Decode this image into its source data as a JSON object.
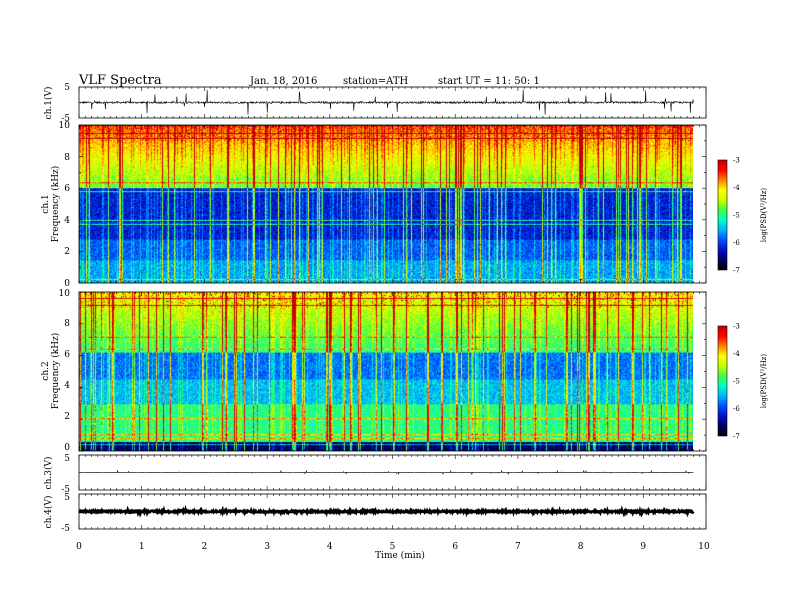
{
  "header": {
    "title": "VLF  Spectra",
    "date": "Jan. 18, 2016",
    "station": "station=ATH",
    "start": "start  UT  =   11: 50: 1"
  },
  "chart_data": [
    {
      "type": "line",
      "name": "ch1",
      "ylabel": "ch.1(V)",
      "ylim": [
        -5,
        5
      ],
      "yticks": [
        "5",
        "-5"
      ],
      "baseline": 0,
      "noise": 0.3,
      "spike_amp": 1.4
    },
    {
      "type": "heatmap",
      "name": "ch1-spectrum",
      "ylabel_channel": "ch.1",
      "ylabel": "Frequency  (kHz)",
      "ylim": [
        0,
        10
      ],
      "yticks": [
        "0",
        "2",
        "4",
        "6",
        "8",
        "10"
      ],
      "colorbar": {
        "label": "log(PSD(V²/Hz)",
        "range": [
          -7,
          -3
        ],
        "ticks": [
          "-3",
          "-4",
          "-5",
          "-6",
          "-7"
        ]
      }
    },
    {
      "type": "heatmap",
      "name": "ch2-spectrum",
      "ylabel_channel": "ch.2",
      "ylabel": "Frequency  (kHz)",
      "ylim": [
        0,
        10
      ],
      "yticks": [
        "0",
        "2",
        "4",
        "6",
        "8",
        "10"
      ],
      "colorbar": {
        "label": "log(PSD(V²/Hz)",
        "range": [
          -7,
          -3
        ],
        "ticks": [
          "-3",
          "-4",
          "-5",
          "-6",
          "-7"
        ]
      }
    },
    {
      "type": "line",
      "name": "ch3",
      "ylabel": "ch.3(V)",
      "ylim": [
        -5,
        5
      ],
      "yticks": [
        "5",
        "-5"
      ],
      "baseline": 0,
      "noise": 0.05,
      "spike_amp": 0.2
    },
    {
      "type": "line",
      "name": "ch4",
      "ylabel": "ch.4(V)",
      "ylim": [
        -5,
        5
      ],
      "yticks": [
        "5",
        "-5"
      ],
      "baseline": 0,
      "noise": 0.25,
      "spike_amp": 0.2
    }
  ],
  "xaxis": {
    "label": "Time  (min)",
    "range": [
      0,
      10
    ],
    "data_end": 9.8,
    "ticks": [
      "0",
      "1",
      "2",
      "3",
      "4",
      "5",
      "6",
      "7",
      "8",
      "9",
      "10"
    ]
  },
  "colors": {
    "line": "#000000",
    "colormap": [
      "#000000",
      "#000060",
      "#0010c8",
      "#0050ff",
      "#00b4ff",
      "#00ffc8",
      "#40ff40",
      "#c8ff00",
      "#ffff00",
      "#ff8000",
      "#ff0000",
      "#c00000"
    ]
  }
}
